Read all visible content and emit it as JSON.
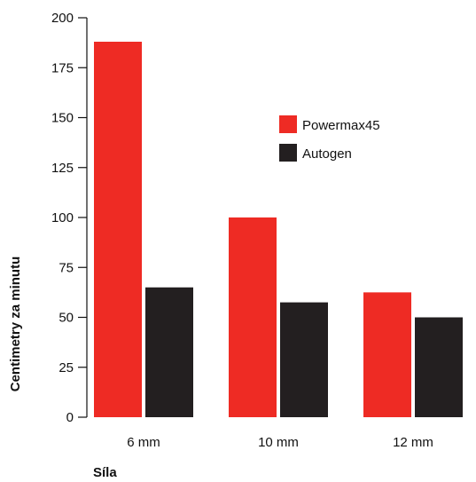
{
  "chart_data": {
    "type": "bar",
    "categories": [
      "6 mm",
      "10 mm",
      "12 mm"
    ],
    "series": [
      {
        "name": "Powermax45",
        "values": [
          188,
          100,
          62.5
        ],
        "color": "#ee2b24"
      },
      {
        "name": "Autogen",
        "values": [
          65,
          57.5,
          50
        ],
        "color": "#231f20"
      }
    ],
    "xlabel": "Síla",
    "ylabel": "Centimetry za minutu",
    "ylim": [
      0,
      200
    ],
    "yticks": [
      0,
      25,
      50,
      75,
      100,
      125,
      150,
      175,
      200
    ],
    "grid": false,
    "legend_position": "top-right"
  }
}
